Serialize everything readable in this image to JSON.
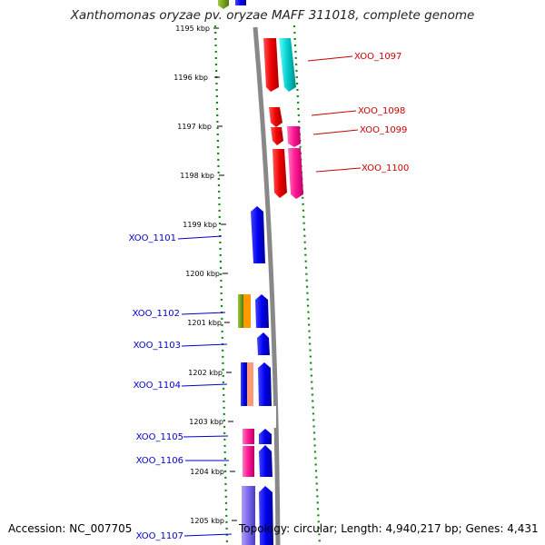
{
  "title": "Xanthomonas oryzae pv. oryzae MAFF 311018, complete genome",
  "footer": {
    "accession": "Accession: NC_007705",
    "topology": "Topology: circular; Length: 4,940,217 bp; Genes: 4,431"
  },
  "ticks": [
    "1195 kbp",
    "1196 kbp",
    "1197 kbp",
    "1198 kbp",
    "1199 kbp",
    "1200 kbp",
    "1201 kbp",
    "1202 kbp",
    "1203 kbp",
    "1204 kbp",
    "1205 kbp"
  ],
  "colors": {
    "forward_label": "#cc0000",
    "reverse_label": "#0000cc",
    "gc_dots": "#118811",
    "backbone": "#888888"
  },
  "genes_forward": [
    {
      "label": "XOO_1097",
      "color": "#ff0000"
    },
    {
      "label": "XOO_1098",
      "color": "#ff0000"
    },
    {
      "label": "XOO_1099",
      "color": "#ff1493"
    },
    {
      "label": "XOO_1100",
      "color": "#ff1493"
    }
  ],
  "genes_reverse": [
    {
      "label": "XOO_1101",
      "color": "#0000ee"
    },
    {
      "label": "XOO_1102",
      "color": "#0000ee"
    },
    {
      "label": "XOO_1103",
      "color": "#0000ee"
    },
    {
      "label": "XOO_1104",
      "color": "#0000ee"
    },
    {
      "label": "XOO_1105",
      "color": "#0000ee"
    },
    {
      "label": "XOO_1106",
      "color": "#0000ee"
    },
    {
      "label": "XOO_1107",
      "color": "#0000ee"
    }
  ]
}
